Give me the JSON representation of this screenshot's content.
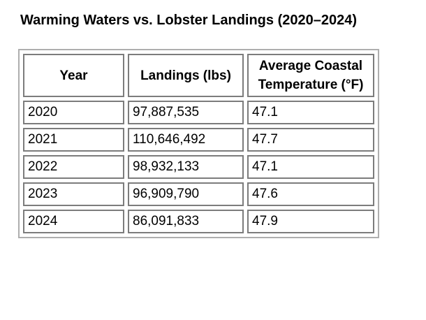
{
  "page": {
    "title": "Warming Waters vs. Lobster Landings (2020–2024)"
  },
  "table": {
    "columns": {
      "year": "Year",
      "landings": "Landings (lbs)",
      "temperature": "Average Coastal Temperature (°F)"
    },
    "rows": [
      {
        "year": "2020",
        "landings": "97,887,535",
        "temperature": "47.1"
      },
      {
        "year": "2021",
        "landings": "110,646,492",
        "temperature": "47.7"
      },
      {
        "year": "2022",
        "landings": "98,932,133",
        "temperature": "47.1"
      },
      {
        "year": "2023",
        "landings": "96,909,790",
        "temperature": "47.6"
      },
      {
        "year": "2024",
        "landings": "86,091,833",
        "temperature": "47.9"
      }
    ]
  },
  "colors": {
    "background": "#ffffff",
    "text": "#000000",
    "outer_border": "#aeaeae",
    "cell_border": "#7c7c7c"
  }
}
